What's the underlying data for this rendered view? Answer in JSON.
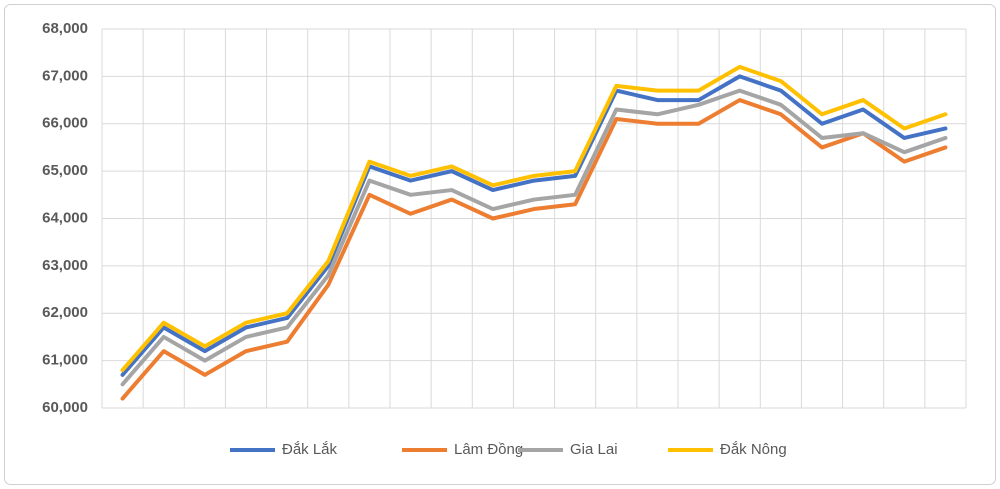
{
  "chart_data": {
    "type": "line",
    "categories": [
      null,
      null,
      null,
      null,
      null,
      null,
      null,
      null,
      null,
      null,
      null,
      null,
      null,
      null,
      null,
      null,
      null,
      null,
      null,
      null,
      null
    ],
    "series": [
      {
        "name": "Đắk Lắk",
        "color": "#4472c4",
        "values": [
          60700,
          61700,
          61200,
          61700,
          61900,
          63000,
          65100,
          64800,
          65000,
          64600,
          64800,
          64900,
          66700,
          66500,
          66500,
          67000,
          66700,
          66000,
          66300,
          65700,
          65900
        ]
      },
      {
        "name": "Lâm Đồng",
        "color": "#ed7d31",
        "values": [
          60200,
          61200,
          60700,
          61200,
          61400,
          62600,
          64500,
          64100,
          64400,
          64000,
          64200,
          64300,
          66100,
          66000,
          66000,
          66500,
          66200,
          65500,
          65800,
          65200,
          65500
        ]
      },
      {
        "name": "Gia Lai",
        "color": "#a5a5a5",
        "values": [
          60500,
          61500,
          61000,
          61500,
          61700,
          62800,
          64800,
          64500,
          64600,
          64200,
          64400,
          64500,
          66300,
          66200,
          66400,
          66700,
          66400,
          65700,
          65800,
          65400,
          65700
        ]
      },
      {
        "name": "Đắk Nông",
        "color": "#ffc000",
        "values": [
          60800,
          61800,
          61300,
          61800,
          62000,
          63100,
          65200,
          64900,
          65100,
          64700,
          64900,
          65000,
          66800,
          66700,
          66700,
          67200,
          66900,
          66200,
          66500,
          65900,
          66200
        ]
      }
    ],
    "ylim": [
      60000,
      68000
    ],
    "yticks": [
      {
        "value": 60000,
        "label": "60,000"
      },
      {
        "value": 61000,
        "label": "61,000"
      },
      {
        "value": 62000,
        "label": "62,000"
      },
      {
        "value": 63000,
        "label": "63,000"
      },
      {
        "value": 64000,
        "label": "64,000"
      },
      {
        "value": 65000,
        "label": "65,000"
      },
      {
        "value": 66000,
        "label": "66,000"
      },
      {
        "value": 67000,
        "label": "67,000"
      },
      {
        "value": 68000,
        "label": "68,000"
      }
    ],
    "grid": true,
    "legend": "bottom"
  }
}
